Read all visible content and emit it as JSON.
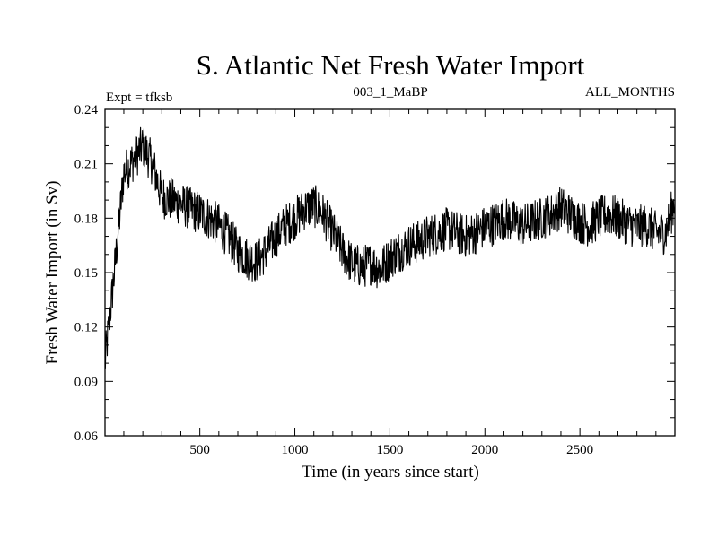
{
  "chart_data": {
    "type": "line",
    "title": "S. Atlantic Net Fresh Water Import",
    "subtitle_left": "Expt = tfksb",
    "subtitle_center": "003_1_MaBP",
    "subtitle_right": "ALL_MONTHS",
    "xlabel": "Time (in years since start)",
    "ylabel": "Fresh Water Import (in Sv)",
    "xlim": [
      1,
      3000
    ],
    "ylim": [
      0.06,
      0.24
    ],
    "x_ticks": [
      500,
      1000,
      1500,
      2000,
      2500
    ],
    "x_tick_labels": [
      "500",
      "1000",
      "1500",
      "2000",
      "2500"
    ],
    "y_ticks": [
      0.06,
      0.09,
      0.12,
      0.15,
      0.18,
      0.21,
      0.24
    ],
    "y_tick_labels": [
      "0.06",
      "0.09",
      "0.12",
      "0.15",
      "0.18",
      "0.21",
      "0.24"
    ],
    "series": [
      {
        "name": "S. Atlantic Net Fresh Water Import",
        "color": "#000000",
        "x": [
          1,
          50,
          100,
          150,
          200,
          250,
          300,
          350,
          400,
          450,
          500,
          550,
          600,
          650,
          700,
          750,
          800,
          850,
          900,
          950,
          1000,
          1050,
          1100,
          1150,
          1200,
          1250,
          1300,
          1350,
          1400,
          1450,
          1500,
          1550,
          1600,
          1650,
          1700,
          1750,
          1800,
          1850,
          1900,
          1950,
          2000,
          2050,
          2100,
          2150,
          2200,
          2250,
          2300,
          2350,
          2400,
          2450,
          2500,
          2550,
          2600,
          2650,
          2700,
          2750,
          2800,
          2850,
          2900,
          2950,
          3000
        ],
        "values": [
          0.1,
          0.15,
          0.205,
          0.212,
          0.22,
          0.21,
          0.192,
          0.19,
          0.188,
          0.185,
          0.183,
          0.18,
          0.176,
          0.17,
          0.162,
          0.158,
          0.156,
          0.162,
          0.17,
          0.176,
          0.18,
          0.185,
          0.187,
          0.182,
          0.172,
          0.162,
          0.155,
          0.153,
          0.155,
          0.152,
          0.158,
          0.162,
          0.165,
          0.167,
          0.17,
          0.172,
          0.174,
          0.172,
          0.17,
          0.172,
          0.175,
          0.177,
          0.18,
          0.178,
          0.176,
          0.178,
          0.18,
          0.182,
          0.186,
          0.182,
          0.178,
          0.176,
          0.18,
          0.182,
          0.18,
          0.177,
          0.175,
          0.176,
          0.172,
          0.172,
          0.19
        ],
        "noise_amplitude": 0.012
      }
    ]
  }
}
